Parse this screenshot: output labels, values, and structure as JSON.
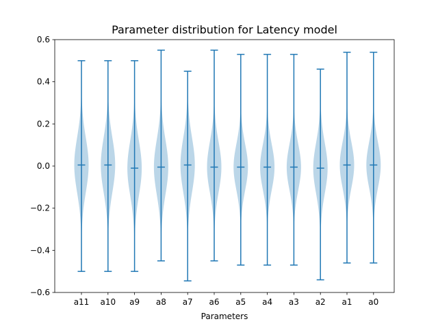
{
  "chart_data": {
    "type": "violin",
    "title": "Parameter distribution for Latency model",
    "xlabel": "Parameters",
    "ylabel": "",
    "ylim": [
      -0.6,
      0.6
    ],
    "yticks": [
      -0.6,
      -0.4,
      -0.2,
      0.0,
      0.2,
      0.4,
      0.6
    ],
    "ytick_labels": [
      "−0.6",
      "−0.4",
      "−0.2",
      "0.0",
      "0.2",
      "0.4",
      "0.6"
    ],
    "grid": false,
    "legend": "none",
    "colors": {
      "line": "#1f77b4",
      "body": "#1f77b4"
    },
    "categories": [
      "a11",
      "a10",
      "a9",
      "a8",
      "a7",
      "a6",
      "a5",
      "a4",
      "a3",
      "a2",
      "a1",
      "a0"
    ],
    "series": [
      {
        "max": 0.5,
        "min": -0.5,
        "median": 0.005,
        "spread": 0.13
      },
      {
        "max": 0.5,
        "min": -0.5,
        "median": 0.005,
        "spread": 0.13
      },
      {
        "max": 0.5,
        "min": -0.5,
        "median": -0.01,
        "spread": 0.13
      },
      {
        "max": 0.55,
        "min": -0.45,
        "median": -0.005,
        "spread": 0.13
      },
      {
        "max": 0.45,
        "min": -0.545,
        "median": 0.005,
        "spread": 0.13
      },
      {
        "max": 0.55,
        "min": -0.45,
        "median": -0.005,
        "spread": 0.12
      },
      {
        "max": 0.53,
        "min": -0.47,
        "median": -0.005,
        "spread": 0.11
      },
      {
        "max": 0.53,
        "min": -0.47,
        "median": -0.005,
        "spread": 0.11
      },
      {
        "max": 0.53,
        "min": -0.47,
        "median": -0.005,
        "spread": 0.11
      },
      {
        "max": 0.46,
        "min": -0.54,
        "median": -0.01,
        "spread": 0.12
      },
      {
        "max": 0.54,
        "min": -0.46,
        "median": 0.005,
        "spread": 0.11
      },
      {
        "max": 0.54,
        "min": -0.46,
        "median": 0.005,
        "spread": 0.11
      }
    ]
  }
}
